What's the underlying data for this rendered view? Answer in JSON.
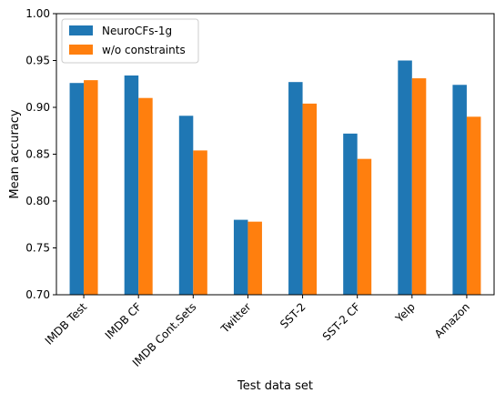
{
  "chart_data": {
    "type": "bar",
    "categories": [
      "IMDB Test",
      "IMDB CF",
      "IMDB Cont.Sets",
      "Twitter",
      "SST-2",
      "SST-2 CF",
      "Yelp",
      "Amazon"
    ],
    "series": [
      {
        "name": "NeuroCFs-1g",
        "color": "#1f77b4",
        "values": [
          0.926,
          0.934,
          0.891,
          0.78,
          0.927,
          0.872,
          0.95,
          0.924
        ]
      },
      {
        "name": "w/o constraints",
        "color": "#ff7f0e",
        "values": [
          0.929,
          0.91,
          0.854,
          0.778,
          0.904,
          0.845,
          0.931,
          0.89
        ]
      }
    ],
    "xlabel": "Test data set",
    "ylabel": "Mean accuracy",
    "ylim": [
      0.7,
      1.0
    ],
    "yticks": [
      "0.70",
      "0.75",
      "0.80",
      "0.85",
      "0.90",
      "0.95",
      "1.00"
    ],
    "grid": false,
    "legend_position": "top-left"
  }
}
